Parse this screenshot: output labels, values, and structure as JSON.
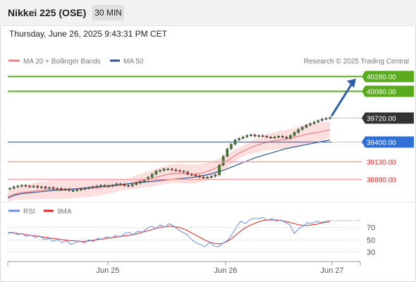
{
  "header": {
    "title": "Nikkei 225 (OSE)",
    "timeframe": "30 MIN"
  },
  "datetime": "Thursday, June 26, 2025 9:43:31 PM CET",
  "legend": {
    "ma20_bb": "MA 20 + Bollinger Bands",
    "ma50": "MA 50",
    "credit": "Research © 2025 Trading Central",
    "rsi": "RSI",
    "ma9": "9MA"
  },
  "colors": {
    "ma20": "#f08080",
    "bb_fill": "#fbd9d9",
    "ma50": "#2f5597",
    "target": "#5aaa1e",
    "pivot": "#2f6fd6",
    "support": "#f4a3a3",
    "support_text": "#e02020",
    "last": "#333333",
    "rsi": "#6a8fe0",
    "ma9": "#e02020",
    "arrow": "#2f5fa8"
  },
  "chart_data": [
    {
      "type": "line",
      "title": "Nikkei 225 (OSE) 30 MIN",
      "xlabel": "",
      "ylabel": "",
      "x_ticks": [
        "Jun 25",
        "Jun 26",
        "Jun 27"
      ],
      "ylim": [
        38600,
        40400
      ],
      "series": [
        {
          "name": "Price",
          "values": [
            38770,
            38790,
            38800,
            38810,
            38800,
            38790,
            38800,
            38780,
            38790,
            38770,
            38780,
            38760,
            38770,
            38750,
            38760,
            38740,
            38740,
            38750,
            38760,
            38770,
            38780,
            38790,
            38800,
            38810,
            38800,
            38800,
            38810,
            38830,
            38820,
            38810,
            38800,
            38820,
            38840,
            38860,
            38880,
            38920,
            38960,
            39000,
            39010,
            39030,
            39030,
            39020,
            39010,
            39000,
            38990,
            38960,
            38950,
            38940,
            38920,
            38910,
            38920,
            38930,
            38950,
            39080,
            39200,
            39300,
            39360,
            39420,
            39440,
            39460,
            39480,
            39490,
            39470,
            39480,
            39470,
            39460,
            39450,
            39460,
            39470,
            39460,
            39440,
            39480,
            39520,
            39560,
            39590,
            39620,
            39640,
            39660,
            39680,
            39700,
            39710,
            39720
          ]
        },
        {
          "name": "MA 20",
          "values": [
            38660,
            38690,
            38710,
            38720,
            38730,
            38740,
            38745,
            38750,
            38750,
            38755,
            38760,
            38765,
            38770,
            38770,
            38775,
            38780,
            38790,
            38800,
            38810,
            38820,
            38840,
            38860,
            38880,
            38900,
            38920,
            38940,
            38960,
            38970,
            38970,
            38960,
            38960,
            38970,
            38990,
            39020,
            39060,
            39120,
            39170,
            39230,
            39270,
            39310,
            39340,
            39370,
            39390,
            39410,
            39420,
            39430,
            39450,
            39470,
            39490,
            39510,
            39520,
            39540,
            39560
          ]
        },
        {
          "name": "MA 50",
          "values": [
            38640,
            38680,
            38700,
            38710,
            38720,
            38730,
            38740,
            38745,
            38750,
            38760,
            38770,
            38780,
            38790,
            38800,
            38810,
            38820,
            38830,
            38840,
            38850,
            38860,
            38870,
            38880,
            38890,
            38900,
            38910,
            38920,
            38940,
            38960,
            38990,
            39020,
            39060,
            39100,
            39140,
            39180,
            39210,
            39240,
            39270,
            39300,
            39320,
            39340,
            39360,
            39380,
            39400,
            39420
          ]
        }
      ],
      "levels": [
        {
          "label": "40280.00",
          "value": 40280,
          "kind": "target"
        },
        {
          "label": "40080.00",
          "value": 40080,
          "kind": "target"
        },
        {
          "label": "39720.00",
          "value": 39720,
          "kind": "last"
        },
        {
          "label": "39400.00",
          "value": 39400,
          "kind": "pivot"
        },
        {
          "label": "39130.00",
          "value": 39130,
          "kind": "support"
        },
        {
          "label": "38890.00",
          "value": 38890,
          "kind": "support"
        }
      ],
      "annotation": "arrow up from 39720 toward 40280"
    },
    {
      "type": "line",
      "title": "RSI",
      "ylim": [
        20,
        90
      ],
      "y_ticks": [
        70,
        50,
        30
      ],
      "series": [
        {
          "name": "RSI",
          "values": [
            60,
            62,
            58,
            60,
            55,
            58,
            53,
            56,
            50,
            52,
            47,
            50,
            45,
            48,
            42,
            45,
            48,
            44,
            50,
            47,
            52,
            50,
            55,
            52,
            57,
            54,
            60,
            62,
            58,
            64,
            62,
            68,
            72,
            68,
            74,
            70,
            76,
            72,
            66,
            62,
            58,
            50,
            45,
            42,
            38,
            46,
            40,
            38,
            44,
            48,
            58,
            70,
            80,
            76,
            82,
            85,
            84,
            86,
            82,
            84,
            80,
            82,
            78,
            74,
            60,
            68,
            72,
            78,
            76,
            80,
            78,
            80,
            81
          ]
        },
        {
          "name": "9MA",
          "values": [
            62,
            61,
            60,
            59,
            58,
            57,
            56,
            55,
            54,
            53,
            52,
            51,
            50,
            49,
            48,
            48,
            47,
            47,
            48,
            49,
            50,
            51,
            52,
            53,
            54,
            55,
            56,
            57,
            58,
            60,
            62,
            64,
            66,
            68,
            70,
            71,
            72,
            71,
            70,
            68,
            65,
            61,
            57,
            53,
            49,
            46,
            44,
            43,
            44,
            47,
            52,
            58,
            64,
            69,
            73,
            76,
            79,
            81,
            82,
            82,
            82,
            81,
            80,
            78,
            76,
            74,
            73,
            73,
            74,
            75,
            77,
            78,
            79
          ]
        }
      ]
    }
  ]
}
